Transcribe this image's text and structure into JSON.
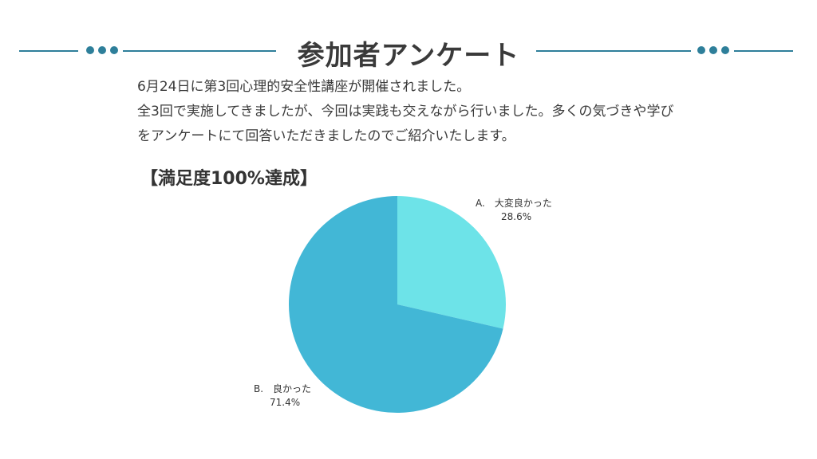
{
  "title": "参加者アンケート",
  "intro": {
    "line1": "6月24日に第3回心理的安全性講座が開催されました。",
    "line2": "全3回で実施してきましたが、今回は実践も交えながら行いました。多くの気づきや学び",
    "line3": "をアンケートにて回答いただきましたのでご紹介いたします。"
  },
  "colors": {
    "accent": "#2e7f9a",
    "slice_a": "#6de3e8",
    "slice_b": "#42b7d6"
  },
  "chart_data": {
    "type": "pie",
    "title": "【満足度100%達成】",
    "slices": [
      {
        "label": "A.　大変良かった",
        "value": 28.6,
        "value_label": "28.6%",
        "color": "#6de3e8"
      },
      {
        "label": "B.　良かった",
        "value": 71.4,
        "value_label": "71.4%",
        "color": "#42b7d6"
      }
    ]
  }
}
